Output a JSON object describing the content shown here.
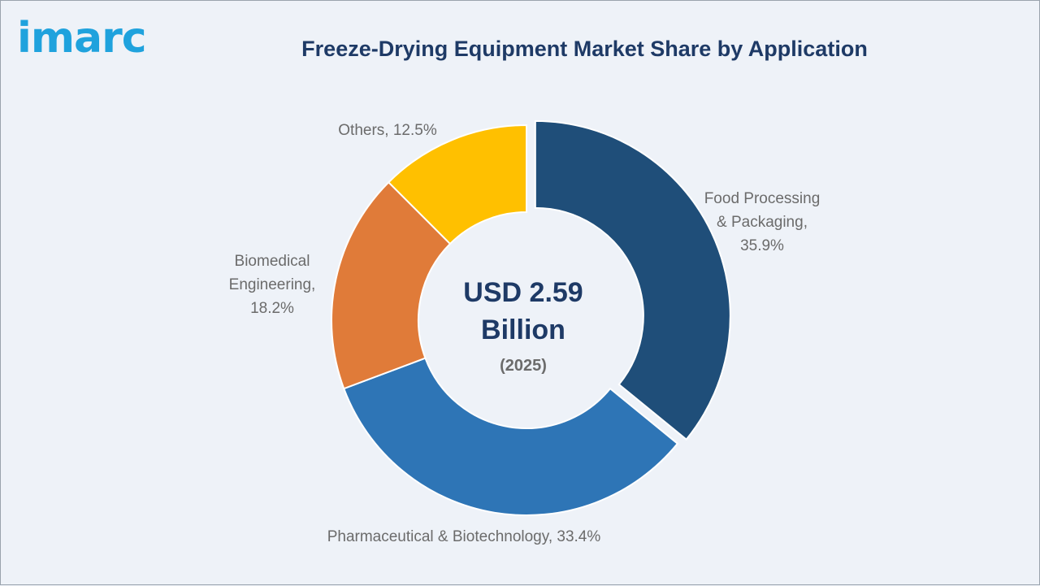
{
  "brand": {
    "logo_text": "imarc",
    "logo_color": "#1fa2dd"
  },
  "chart_data": {
    "type": "pie",
    "donut": true,
    "title": "Freeze-Drying Equipment Market Share by Application",
    "unit": "%",
    "center": {
      "value_line1": "USD 2.59",
      "value_line2": "Billion",
      "year": "(2025)"
    },
    "slices": [
      {
        "label_lines": [
          "Food Processing",
          "& Packaging,",
          "35.9%"
        ],
        "value": 35.9,
        "color": "#1f4e79",
        "exploded": true
      },
      {
        "label_lines": [
          "Pharmaceutical & Biotechnology, 33.4%"
        ],
        "value": 33.4,
        "color": "#2e75b6",
        "exploded": false
      },
      {
        "label_lines": [
          "Biomedical",
          "Engineering,",
          "18.2%"
        ],
        "value": 18.2,
        "color": "#e07b39",
        "exploded": false
      },
      {
        "label_lines": [
          "Others, 12.5%"
        ],
        "value": 12.5,
        "color": "#ffc000",
        "exploded": false
      }
    ]
  }
}
